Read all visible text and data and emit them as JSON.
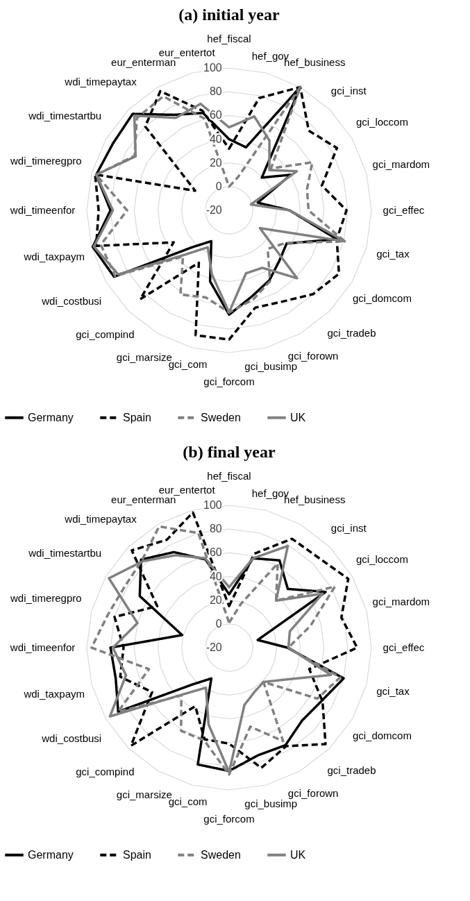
{
  "chart_data": [
    {
      "type": "radar",
      "title": "(a) initial year",
      "categories": [
        "hef_fiscal",
        "hef_gov",
        "hef_business",
        "gci_inst",
        "gci_loccom",
        "gci_mardom",
        "gci_effec",
        "gci_tax",
        "gci_domcom",
        "gci_tradeb",
        "gci_forown",
        "gci_busimp",
        "gci_forcom",
        "gci_com",
        "gci_marsize",
        "gci_compind",
        "wdi_costbusi",
        "wdi_taxpaym",
        "wdi_timeenfor",
        "wdi_timeregpro",
        "wdi_timestartbu",
        "wdi_timepaytax",
        "eur_enterman",
        "eur_entertot"
      ],
      "ylim": [
        -20,
        100
      ],
      "yticks": [
        -20,
        0,
        20,
        40,
        60,
        80,
        100
      ],
      "grid": true,
      "legend": "bottom",
      "series": [
        {
          "name": "Germany",
          "color": "#000000",
          "line_style": "solid",
          "values": [
            40,
            35,
            100,
            19,
            40,
            5,
            31,
            74,
            36,
            40,
            48,
            55,
            68,
            42,
            10,
            24,
            92,
            99,
            80,
            96,
            93,
            95,
            73,
            65
          ]
        },
        {
          "name": "Spain",
          "color": "#000000",
          "line_style": "dashed",
          "values": [
            32,
            78,
            100,
            75,
            85,
            61,
            79,
            74,
            87,
            80,
            69,
            65,
            89,
            89,
            31,
            86,
            34,
            96,
            90,
            97,
            13,
            80,
            96,
            67
          ]
        },
        {
          "name": "Sweden",
          "color": "#808080",
          "line_style": "dashed",
          "values": [
            0,
            9,
            100,
            30,
            61,
            48,
            47,
            81,
            35,
            26,
            49,
            58,
            66,
            56,
            62,
            35,
            91,
            92,
            66,
            96,
            72,
            90,
            91,
            60
          ]
        },
        {
          "name": "UK",
          "color": "#808080",
          "line_style": "solid",
          "values": [
            50,
            62,
            48,
            28,
            46,
            -1,
            31,
            81,
            10,
            61,
            36,
            35,
            66,
            36,
            16,
            33,
            88,
            98,
            78,
            96,
            71,
            93,
            70,
            73
          ]
        }
      ]
    },
    {
      "type": "radar",
      "title": "(b) final year",
      "categories": [
        "hef_fiscal",
        "hef_gov",
        "hef_business",
        "gci_inst",
        "gci_loccom",
        "gci_mardom",
        "gci_effec",
        "gci_tax",
        "gci_domcom",
        "gci_tradeb",
        "gci_forown",
        "gci_busimp",
        "gci_forcom",
        "gci_com",
        "gci_marsize",
        "gci_compind",
        "wdi_costbusi",
        "wdi_taxpaym",
        "wdi_timeenfor",
        "wdi_timeregpro",
        "wdi_timestartbu",
        "wdi_timepaytax",
        "eur_enterman",
        "eur_entertot"
      ],
      "ylim": [
        -20,
        100
      ],
      "yticks": [
        -20,
        0,
        20,
        40,
        60,
        80,
        100
      ],
      "grid": true,
      "legend": "bottom",
      "series": [
        {
          "name": "Germany",
          "color": "#000000",
          "line_style": "solid",
          "values": [
            25,
            58,
            65,
            50,
            74,
            5,
            29,
            80,
            70,
            67,
            75,
            74,
            84,
            82,
            10,
            24,
            88,
            79,
            80,
            21,
            67,
            85,
            73,
            57
          ]
        },
        {
          "name": "Spain",
          "color": "#000000",
          "line_style": "dashed",
          "values": [
            15,
            62,
            86,
            87,
            96,
            78,
            88,
            50,
            71,
            95,
            76,
            85,
            61,
            60,
            37,
            97,
            55,
            75,
            69,
            80,
            50,
            96,
            85,
            98
          ]
        },
        {
          "name": "Sweden",
          "color": "#808080",
          "line_style": "dashed",
          "values": [
            1,
            18,
            62,
            36,
            83,
            51,
            30,
            77,
            66,
            21,
            71,
            49,
            87,
            61,
            61,
            37,
            88,
            50,
            96,
            86,
            82,
            84,
            98,
            80
          ]
        },
        {
          "name": "UK",
          "color": "#808080",
          "line_style": "solid",
          "values": [
            31,
            58,
            79,
            36,
            71,
            33,
            30,
            69,
            34,
            21,
            23,
            30,
            85,
            47,
            19,
            36,
            96,
            70,
            78,
            60,
            97,
            83,
            70,
            58
          ]
        }
      ]
    }
  ]
}
